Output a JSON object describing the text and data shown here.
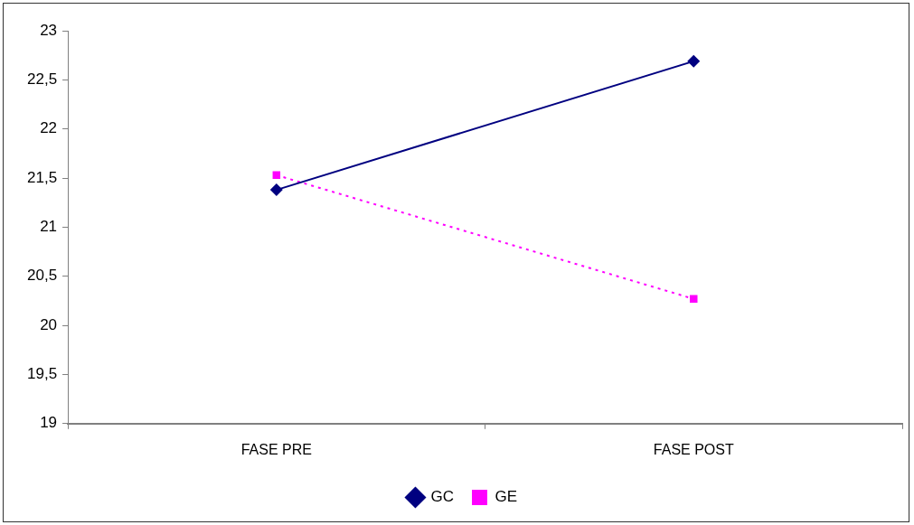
{
  "chart_data": {
    "type": "line",
    "categories": [
      "FASE PRE",
      "FASE POST"
    ],
    "series": [
      {
        "name": "GC",
        "color": "#000080",
        "values": [
          21.38,
          22.69
        ],
        "marker": "diamond",
        "line_style": "solid"
      },
      {
        "name": "GE",
        "color": "#ff00ff",
        "values": [
          21.53,
          20.27
        ],
        "marker": "square",
        "line_style": "dotted"
      }
    ],
    "ylim": [
      19,
      23
    ],
    "yticks": [
      19,
      {
        "value": 19.5,
        "label": "19,5"
      },
      20,
      {
        "value": 20.5,
        "label": "20,5"
      },
      21,
      {
        "value": 21.5,
        "label": "21,5"
      },
      22,
      {
        "value": 22.5,
        "label": "22,5"
      },
      23
    ],
    "grid": false,
    "legend": "bottom"
  }
}
